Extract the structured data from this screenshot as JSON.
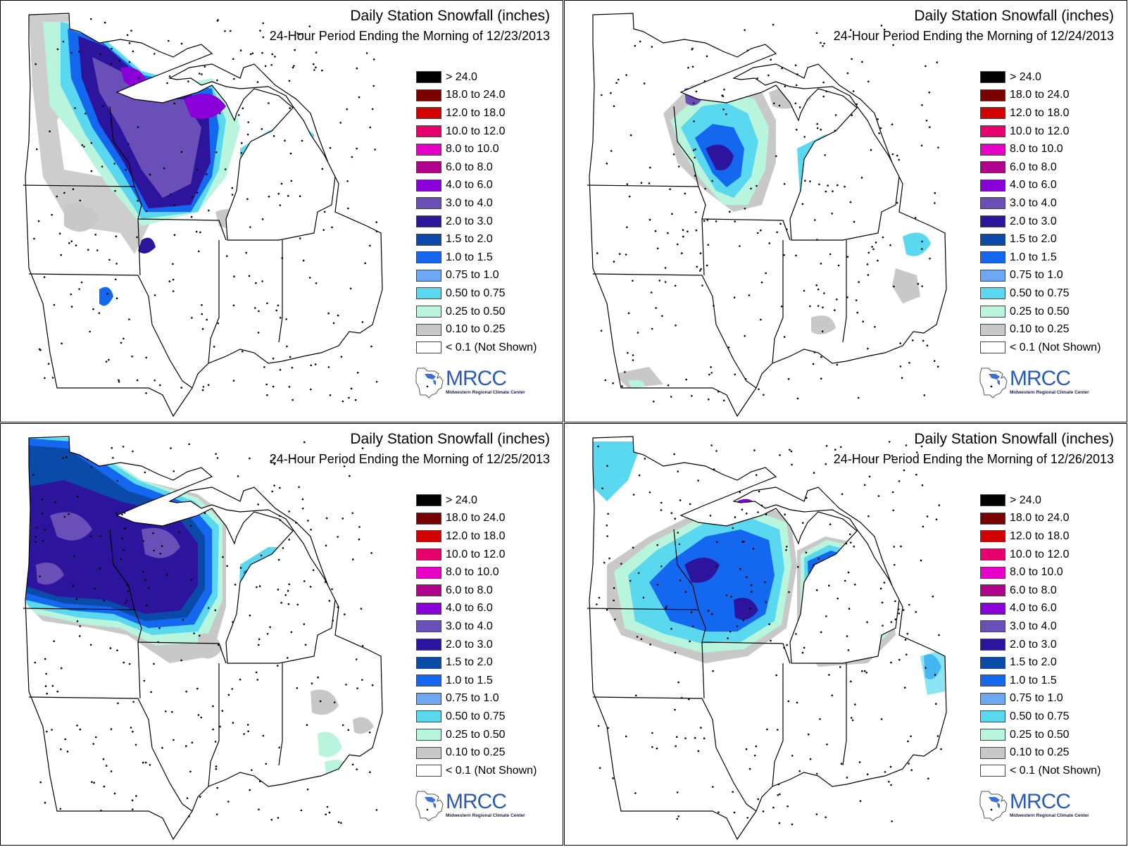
{
  "panels": [
    {
      "title": "Daily Station Snowfall (inches)",
      "subtitle": "24-Hour Period Ending the Morning of 12/23/2013"
    },
    {
      "title": "Daily Station Snowfall (inches)",
      "subtitle": "24-Hour Period Ending the Morning of 12/24/2013"
    },
    {
      "title": "Daily Station Snowfall (inches)",
      "subtitle": "24-Hour Period Ending the Morning of 12/25/2013"
    },
    {
      "title": "Daily Station Snowfall (inches)",
      "subtitle": "24-Hour Period Ending the Morning of 12/26/2013"
    }
  ],
  "legend": [
    {
      "label": "> 24.0",
      "color": "#000000"
    },
    {
      "label": "18.0 to 24.0",
      "color": "#7a0000"
    },
    {
      "label": "12.0 to 18.0",
      "color": "#d40000"
    },
    {
      "label": "10.0 to 12.0",
      "color": "#e8006e"
    },
    {
      "label": "8.0 to 10.0",
      "color": "#e600c8"
    },
    {
      "label": "6.0 to 8.0",
      "color": "#b0008c"
    },
    {
      "label": "4.0 to 6.0",
      "color": "#8a00d8"
    },
    {
      "label": "3.0 to 4.0",
      "color": "#6a4fb8"
    },
    {
      "label": "2.0 to 3.0",
      "color": "#2c149c"
    },
    {
      "label": "1.5 to 2.0",
      "color": "#0a4aa8"
    },
    {
      "label": "1.0 to 1.5",
      "color": "#1468f0"
    },
    {
      "label": "0.75 to 1.0",
      "color": "#6ea8f5"
    },
    {
      "label": "0.50 to 0.75",
      "color": "#5ad8f0"
    },
    {
      "label": "0.25 to 0.50",
      "color": "#b8f5dc"
    },
    {
      "label": "0.10 to 0.25",
      "color": "#c8c8c8"
    },
    {
      "label": "< 0.1 (Not Shown)",
      "color": "#ffffff"
    }
  ],
  "logo": {
    "name": "MRCC",
    "full_name": "Midwestern Regional Climate Center"
  }
}
